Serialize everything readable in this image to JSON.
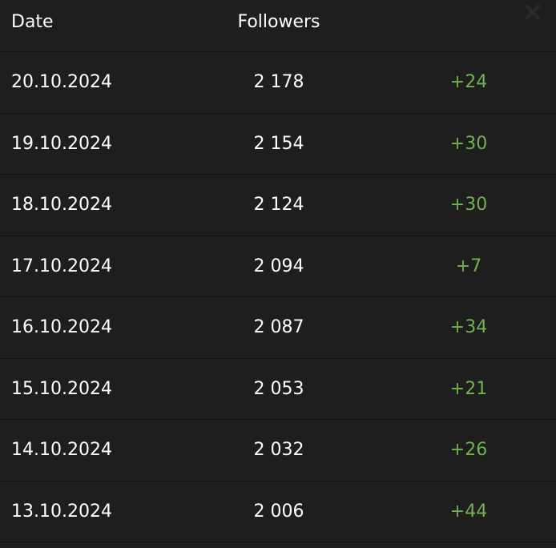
{
  "header": {
    "date_label": "Date",
    "followers_label": "Followers",
    "close_icon": "close-icon"
  },
  "colors": {
    "background": "#1e1e1e",
    "text": "#ffffff",
    "positive_change": "#6fb34f",
    "divider": "#111111"
  },
  "rows": [
    {
      "date": "20.10.2024",
      "followers": "2 178",
      "change": "+24"
    },
    {
      "date": "19.10.2024",
      "followers": "2 154",
      "change": "+30"
    },
    {
      "date": "18.10.2024",
      "followers": "2 124",
      "change": "+30"
    },
    {
      "date": "17.10.2024",
      "followers": "2 094",
      "change": "+7"
    },
    {
      "date": "16.10.2024",
      "followers": "2 087",
      "change": "+34"
    },
    {
      "date": "15.10.2024",
      "followers": "2 053",
      "change": "+21"
    },
    {
      "date": "14.10.2024",
      "followers": "2 032",
      "change": "+26"
    },
    {
      "date": "13.10.2024",
      "followers": "2 006",
      "change": "+44"
    }
  ]
}
